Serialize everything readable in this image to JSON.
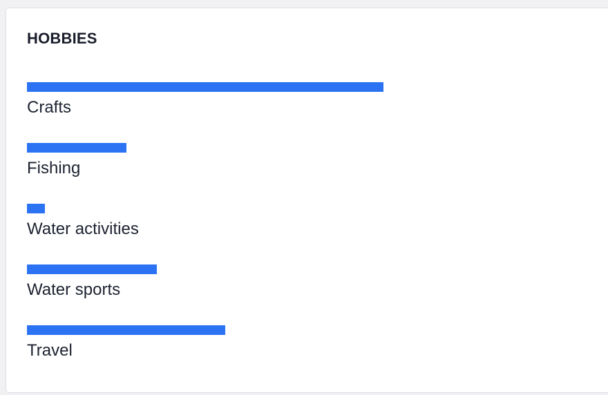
{
  "title": "HOBBIES",
  "accent_color": "#2b73f3",
  "chart_data": {
    "type": "bar",
    "orientation": "horizontal",
    "title": "HOBBIES",
    "categories": [
      "Crafts",
      "Fishing",
      "Water activities",
      "Water sports",
      "Travel"
    ],
    "series": [
      {
        "values": [
          1.0,
          0.28,
          0.05,
          0.365,
          0.557
        ]
      }
    ],
    "xlabel": "",
    "ylabel": "",
    "xlim": [
      0,
      1.59
    ],
    "grid": false,
    "legend": "none"
  }
}
